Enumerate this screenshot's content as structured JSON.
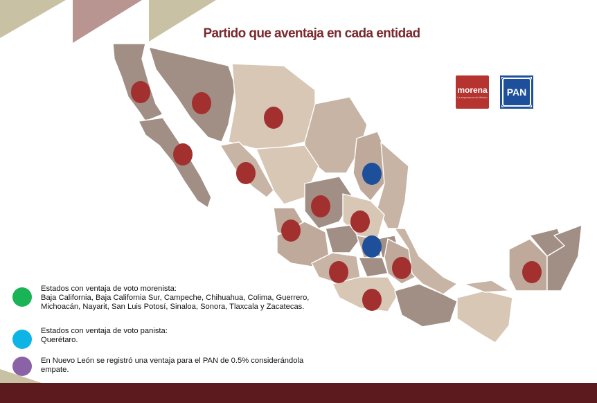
{
  "title": "Partido que aventaja en cada entidad",
  "logos": {
    "morena": {
      "word": "morena",
      "tagline": "La esperanza de México"
    },
    "pan": "PAN"
  },
  "colors": {
    "morena": "#a2302f",
    "pan": "#1d4f9b",
    "legend_morena": "#1ab355",
    "legend_pan": "#0fb4e6",
    "legend_tie": "#8a63a6",
    "state_light": "#d8c7b5",
    "state_mid": "#bfa99b",
    "state_dark": "#a18f86",
    "accent_bar": "#5c1a1e"
  },
  "map_markers": [
    {
      "state": "Baja California",
      "party": "morena"
    },
    {
      "state": "Sonora",
      "party": "morena"
    },
    {
      "state": "Chihuahua",
      "party": "morena"
    },
    {
      "state": "Baja California Sur",
      "party": "morena"
    },
    {
      "state": "Sinaloa",
      "party": "morena"
    },
    {
      "state": "Nuevo León",
      "party": "pan"
    },
    {
      "state": "Zacatecas",
      "party": "morena"
    },
    {
      "state": "San Luis Potosí",
      "party": "morena"
    },
    {
      "state": "Nayarit",
      "party": "morena"
    },
    {
      "state": "Querétaro",
      "party": "pan"
    },
    {
      "state": "Michoacán",
      "party": "morena"
    },
    {
      "state": "Tlaxcala",
      "party": "morena"
    },
    {
      "state": "Guerrero",
      "party": "morena"
    },
    {
      "state": "Campeche",
      "party": "morena"
    }
  ],
  "legend": [
    {
      "heading": "Estados con ventaja de voto morenista:",
      "lines": [
        "Baja California, Baja California Sur, Campeche, Chihuahua, Colima, Guerrero,",
        "Michoacán, Nayarit, San Luis Potosí, Sinaloa, Sonora, Tlaxcala y Zacatecas."
      ]
    },
    {
      "heading": "Estados con ventaja de voto panista:",
      "lines": [
        "Querétaro."
      ]
    },
    {
      "heading": "",
      "lines": [
        "En Nuevo León se registró una ventaja para el PAN de 0.5% considerándola",
        "empate."
      ]
    }
  ]
}
